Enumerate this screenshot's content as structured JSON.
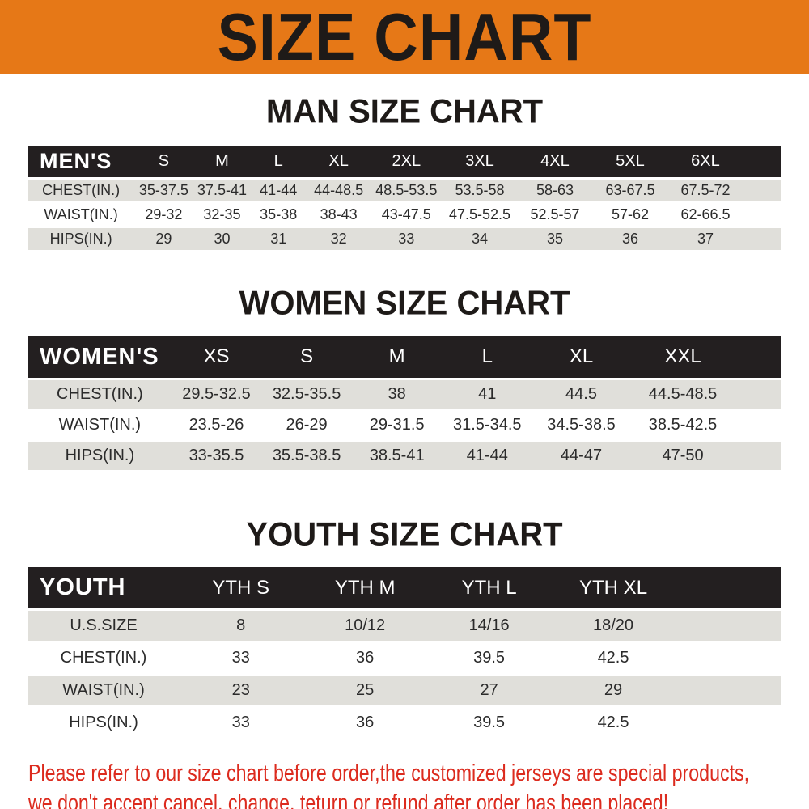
{
  "banner": {
    "title": "SIZE CHART",
    "bg_color": "#E67817",
    "text_color": "#1E1A18"
  },
  "sections": [
    {
      "title": "MAN SIZE CHART",
      "table": {
        "header_label": "MEN'S",
        "columns": [
          "S",
          "M",
          "L",
          "XL",
          "2XL",
          "3XL",
          "4XL",
          "5XL",
          "6XL"
        ],
        "rows": [
          {
            "label": "CHEST(IN.)",
            "values": [
              "35-37.5",
              "37.5-41",
              "41-44",
              "44-48.5",
              "48.5-53.5",
              "53.5-58",
              "58-63",
              "63-67.5",
              "67.5-72"
            ]
          },
          {
            "label": "WAIST(IN.)",
            "values": [
              "29-32",
              "32-35",
              "35-38",
              "38-43",
              "43-47.5",
              "47.5-52.5",
              "52.5-57",
              "57-62",
              "62-66.5"
            ]
          },
          {
            "label": "HIPS(IN.)",
            "values": [
              "29",
              "30",
              "31",
              "32",
              "33",
              "34",
              "35",
              "36",
              "37"
            ]
          }
        ]
      }
    },
    {
      "title": "WOMEN SIZE CHART",
      "table": {
        "header_label": "WOMEN'S",
        "columns": [
          "XS",
          "S",
          "M",
          "L",
          "XL",
          "XXL"
        ],
        "rows": [
          {
            "label": "CHEST(IN.)",
            "values": [
              "29.5-32.5",
              "32.5-35.5",
              "38",
              "41",
              "44.5",
              "44.5-48.5"
            ]
          },
          {
            "label": "WAIST(IN.)",
            "values": [
              "23.5-26",
              "26-29",
              "29-31.5",
              "31.5-34.5",
              "34.5-38.5",
              "38.5-42.5"
            ]
          },
          {
            "label": "HIPS(IN.)",
            "values": [
              "33-35.5",
              "35.5-38.5",
              "38.5-41",
              "41-44",
              "44-47",
              "47-50"
            ]
          }
        ]
      }
    },
    {
      "title": "YOUTH SIZE CHART",
      "table": {
        "header_label": "YOUTH",
        "columns": [
          "YTH S",
          "YTH M",
          "YTH L",
          "YTH XL"
        ],
        "rows": [
          {
            "label": "U.S.SIZE",
            "values": [
              "8",
              "10/12",
              "14/16",
              "18/20"
            ]
          },
          {
            "label": "CHEST(IN.)",
            "values": [
              "33",
              "36",
              "39.5",
              "42.5"
            ]
          },
          {
            "label": "WAIST(IN.)",
            "values": [
              "23",
              "25",
              "27",
              "29"
            ]
          },
          {
            "label": "HIPS(IN.)",
            "values": [
              "33",
              "36",
              "39.5",
              "42.5"
            ]
          }
        ]
      }
    }
  ],
  "table_colors": {
    "header_bg": "#231F20",
    "header_text": "#ffffff",
    "row_alt_bg": "#E0DFDA",
    "row_bg": "#ffffff"
  },
  "disclaimer": {
    "line1": "Please refer to our size chart before order,the customized jerseys are special products,",
    "line2": "we don't accept cancel, change, teturn or refund after order has been placed!",
    "color": "#DC2B1E"
  }
}
